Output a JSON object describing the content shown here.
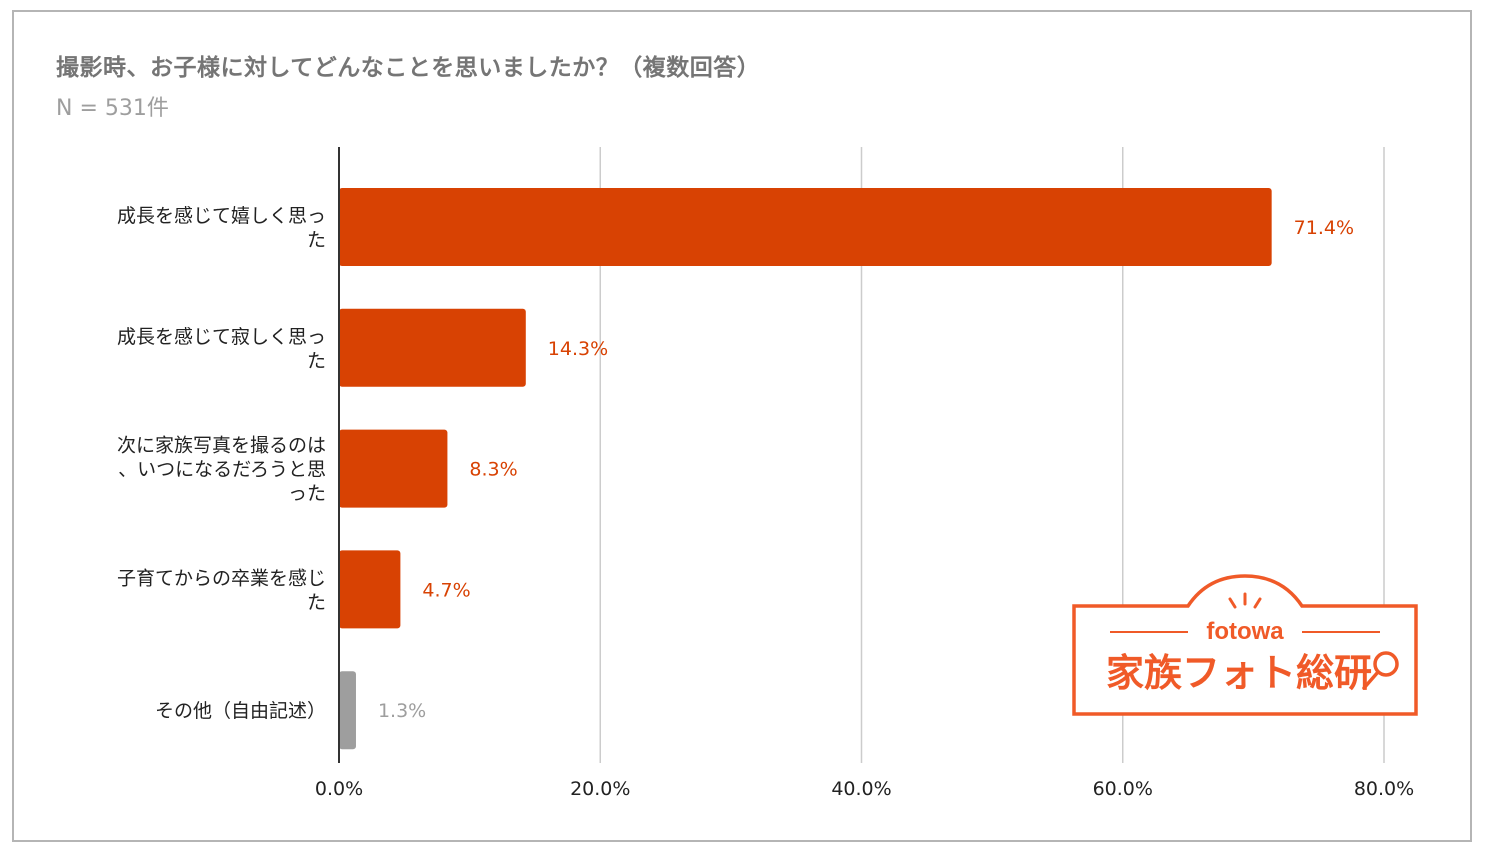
{
  "title": "撮影時、お子様に対してどんなことを思いましたか？（複数回答）",
  "subtitle": "N = 531件",
  "chart_data": {
    "type": "bar",
    "orientation": "horizontal",
    "categories": [
      [
        "成長を感じて嬉しく思っ",
        "た"
      ],
      [
        "成長を感じて寂しく思っ",
        "た"
      ],
      [
        "次に家族写真を撮るのは",
        "、いつになるだろうと思",
        "った"
      ],
      [
        "子育てからの卒業を感じ",
        "た"
      ],
      [
        "その他（自由記述）"
      ]
    ],
    "values": [
      71.4,
      14.3,
      8.3,
      4.7,
      1.3
    ],
    "value_labels": [
      "71.4%",
      "14.3%",
      "8.3%",
      "4.7%",
      "1.3%"
    ],
    "bar_colors": [
      "#d84203",
      "#d84203",
      "#d84203",
      "#d84203",
      "#9e9e9e"
    ],
    "xlim": [
      0,
      80
    ],
    "xticks": [
      "0.0%",
      "20.0%",
      "40.0%",
      "60.0%",
      "80.0%"
    ],
    "grid": true
  },
  "logo": {
    "brand": "fotowa",
    "name": "家族フォト総研",
    "color": "#f05a28"
  }
}
